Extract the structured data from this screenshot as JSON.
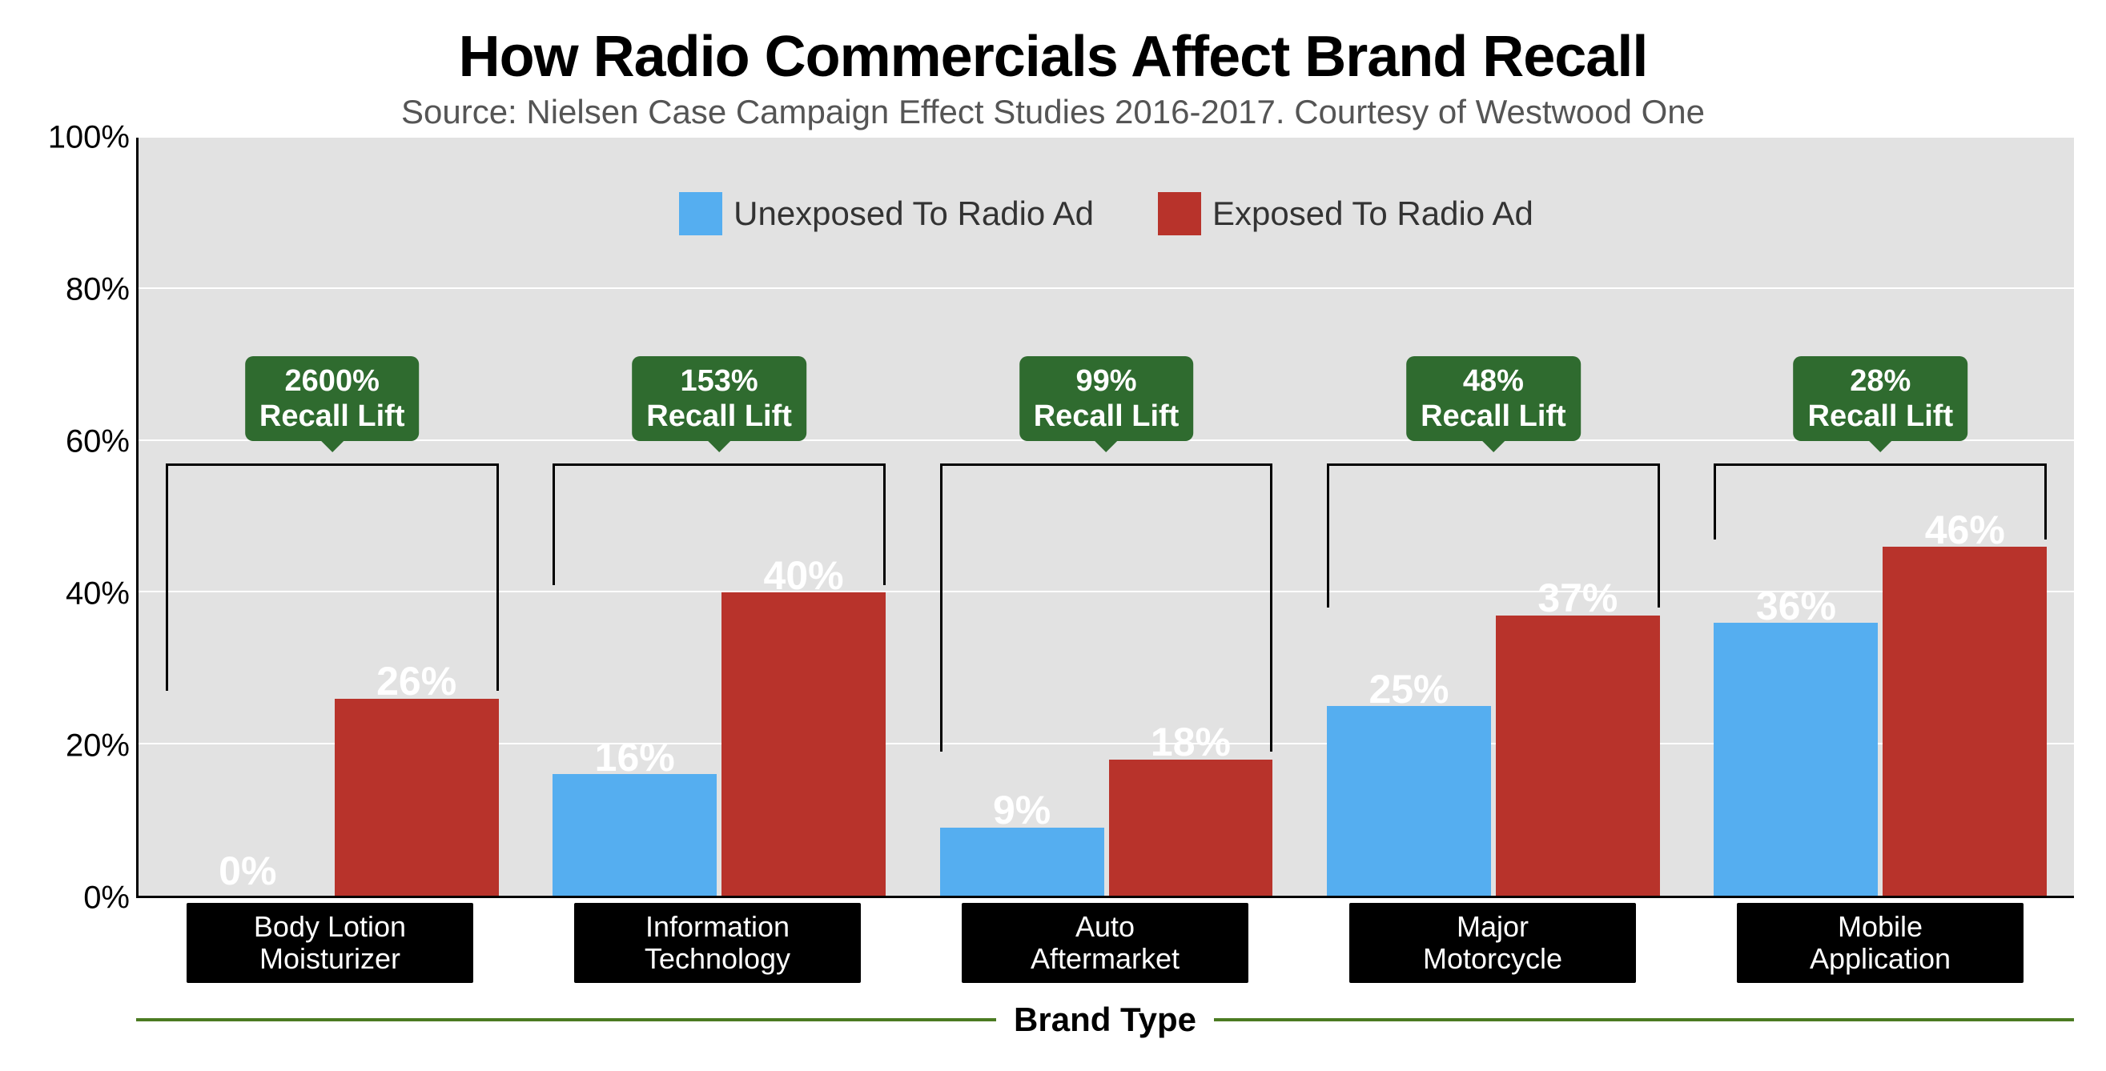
{
  "title": "How Radio Commercials Affect Brand Recall",
  "subtitle": "Source: Nielsen Case Campaign Effect Studies 2016-2017. Courtesy of Westwood One",
  "title_fontsize": 72,
  "subtitle_fontsize": 42,
  "chart": {
    "type": "grouped-bar",
    "ylim": [
      0,
      100
    ],
    "ytick_step": 20,
    "y_unit": "%",
    "axis_fontsize": 40,
    "bar_label_fontsize": 50,
    "callout_fontsize": 38,
    "catlabel_fontsize": 36,
    "legend_fontsize": 42,
    "xaxis_title": "Brand Type",
    "xaxis_title_fontsize": 42,
    "xaxis_rule_color": "#4b7b22",
    "background_color": "#e2e2e2",
    "grid_color": "#ffffff",
    "callout_bg": "#2f6b2f",
    "callout_text_color": "#ffffff",
    "catlabel_bg": "#000000",
    "catlabel_text_color": "#ffffff",
    "bracket_top_pct": 57,
    "callout_top_pct": 82,
    "series": [
      {
        "key": "unexposed",
        "label": "Unexposed To Radio Ad",
        "color": "#55aef0"
      },
      {
        "key": "exposed",
        "label": "Exposed To Radio Ad",
        "color": "#b8332b"
      }
    ],
    "categories": [
      {
        "label": "Body Lotion\nMoisturizer",
        "unexposed": 0,
        "exposed": 26,
        "lift": "2600%"
      },
      {
        "label": "Information\nTechnology",
        "unexposed": 16,
        "exposed": 40,
        "lift": "153%"
      },
      {
        "label": "Auto\nAftermarket",
        "unexposed": 9,
        "exposed": 18,
        "lift": "99%"
      },
      {
        "label": "Major\nMotorcycle",
        "unexposed": 25,
        "exposed": 37,
        "lift": "48%"
      },
      {
        "label": "Mobile\nApplication",
        "unexposed": 36,
        "exposed": 46,
        "lift": "28%"
      }
    ],
    "callout_line2": "Recall Lift"
  }
}
